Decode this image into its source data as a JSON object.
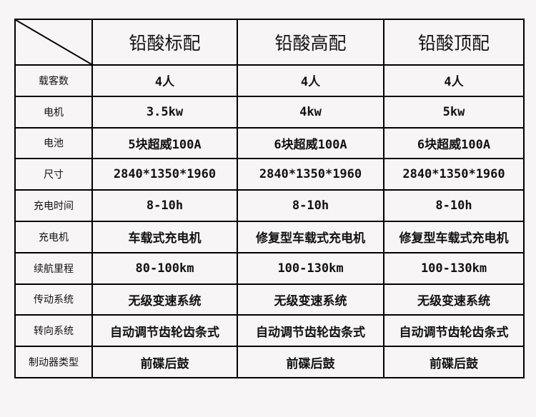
{
  "headers": [
    "铅酸标配",
    "铅酸高配",
    "铅酸顶配"
  ],
  "rows": [
    {
      "label": "载客数",
      "values": [
        "4人",
        "4人",
        "4人"
      ]
    },
    {
      "label": "电机",
      "values": [
        "3.5kw",
        "4kw",
        "5kw"
      ]
    },
    {
      "label": "电池",
      "values": [
        "5块超威100A",
        "6块超威100A",
        "6块超威100A"
      ]
    },
    {
      "label": "尺寸",
      "values": [
        "2840*1350*1960",
        "2840*1350*1960",
        "2840*1350*1960"
      ]
    },
    {
      "label": "充电时间",
      "values": [
        "8-10h",
        "8-10h",
        "8-10h"
      ]
    },
    {
      "label": "充电机",
      "values": [
        "车载式充电机",
        "修复型车载式充电机",
        "修复型车载式充电机"
      ]
    },
    {
      "label": "续航里程",
      "values": [
        "80-100km",
        "100-130km",
        "100-130km"
      ]
    },
    {
      "label": "传动系统",
      "values": [
        "无级变速系统",
        "无级变速系统",
        "无级变速系统"
      ]
    },
    {
      "label": "转向系统",
      "values": [
        "自动调节齿轮齿条式",
        "自动调节齿轮齿条式",
        "自动调节齿轮齿条式"
      ]
    },
    {
      "label": "制动器类型",
      "values": [
        "前碟后鼓",
        "前碟后鼓",
        "前碟后鼓"
      ]
    }
  ]
}
